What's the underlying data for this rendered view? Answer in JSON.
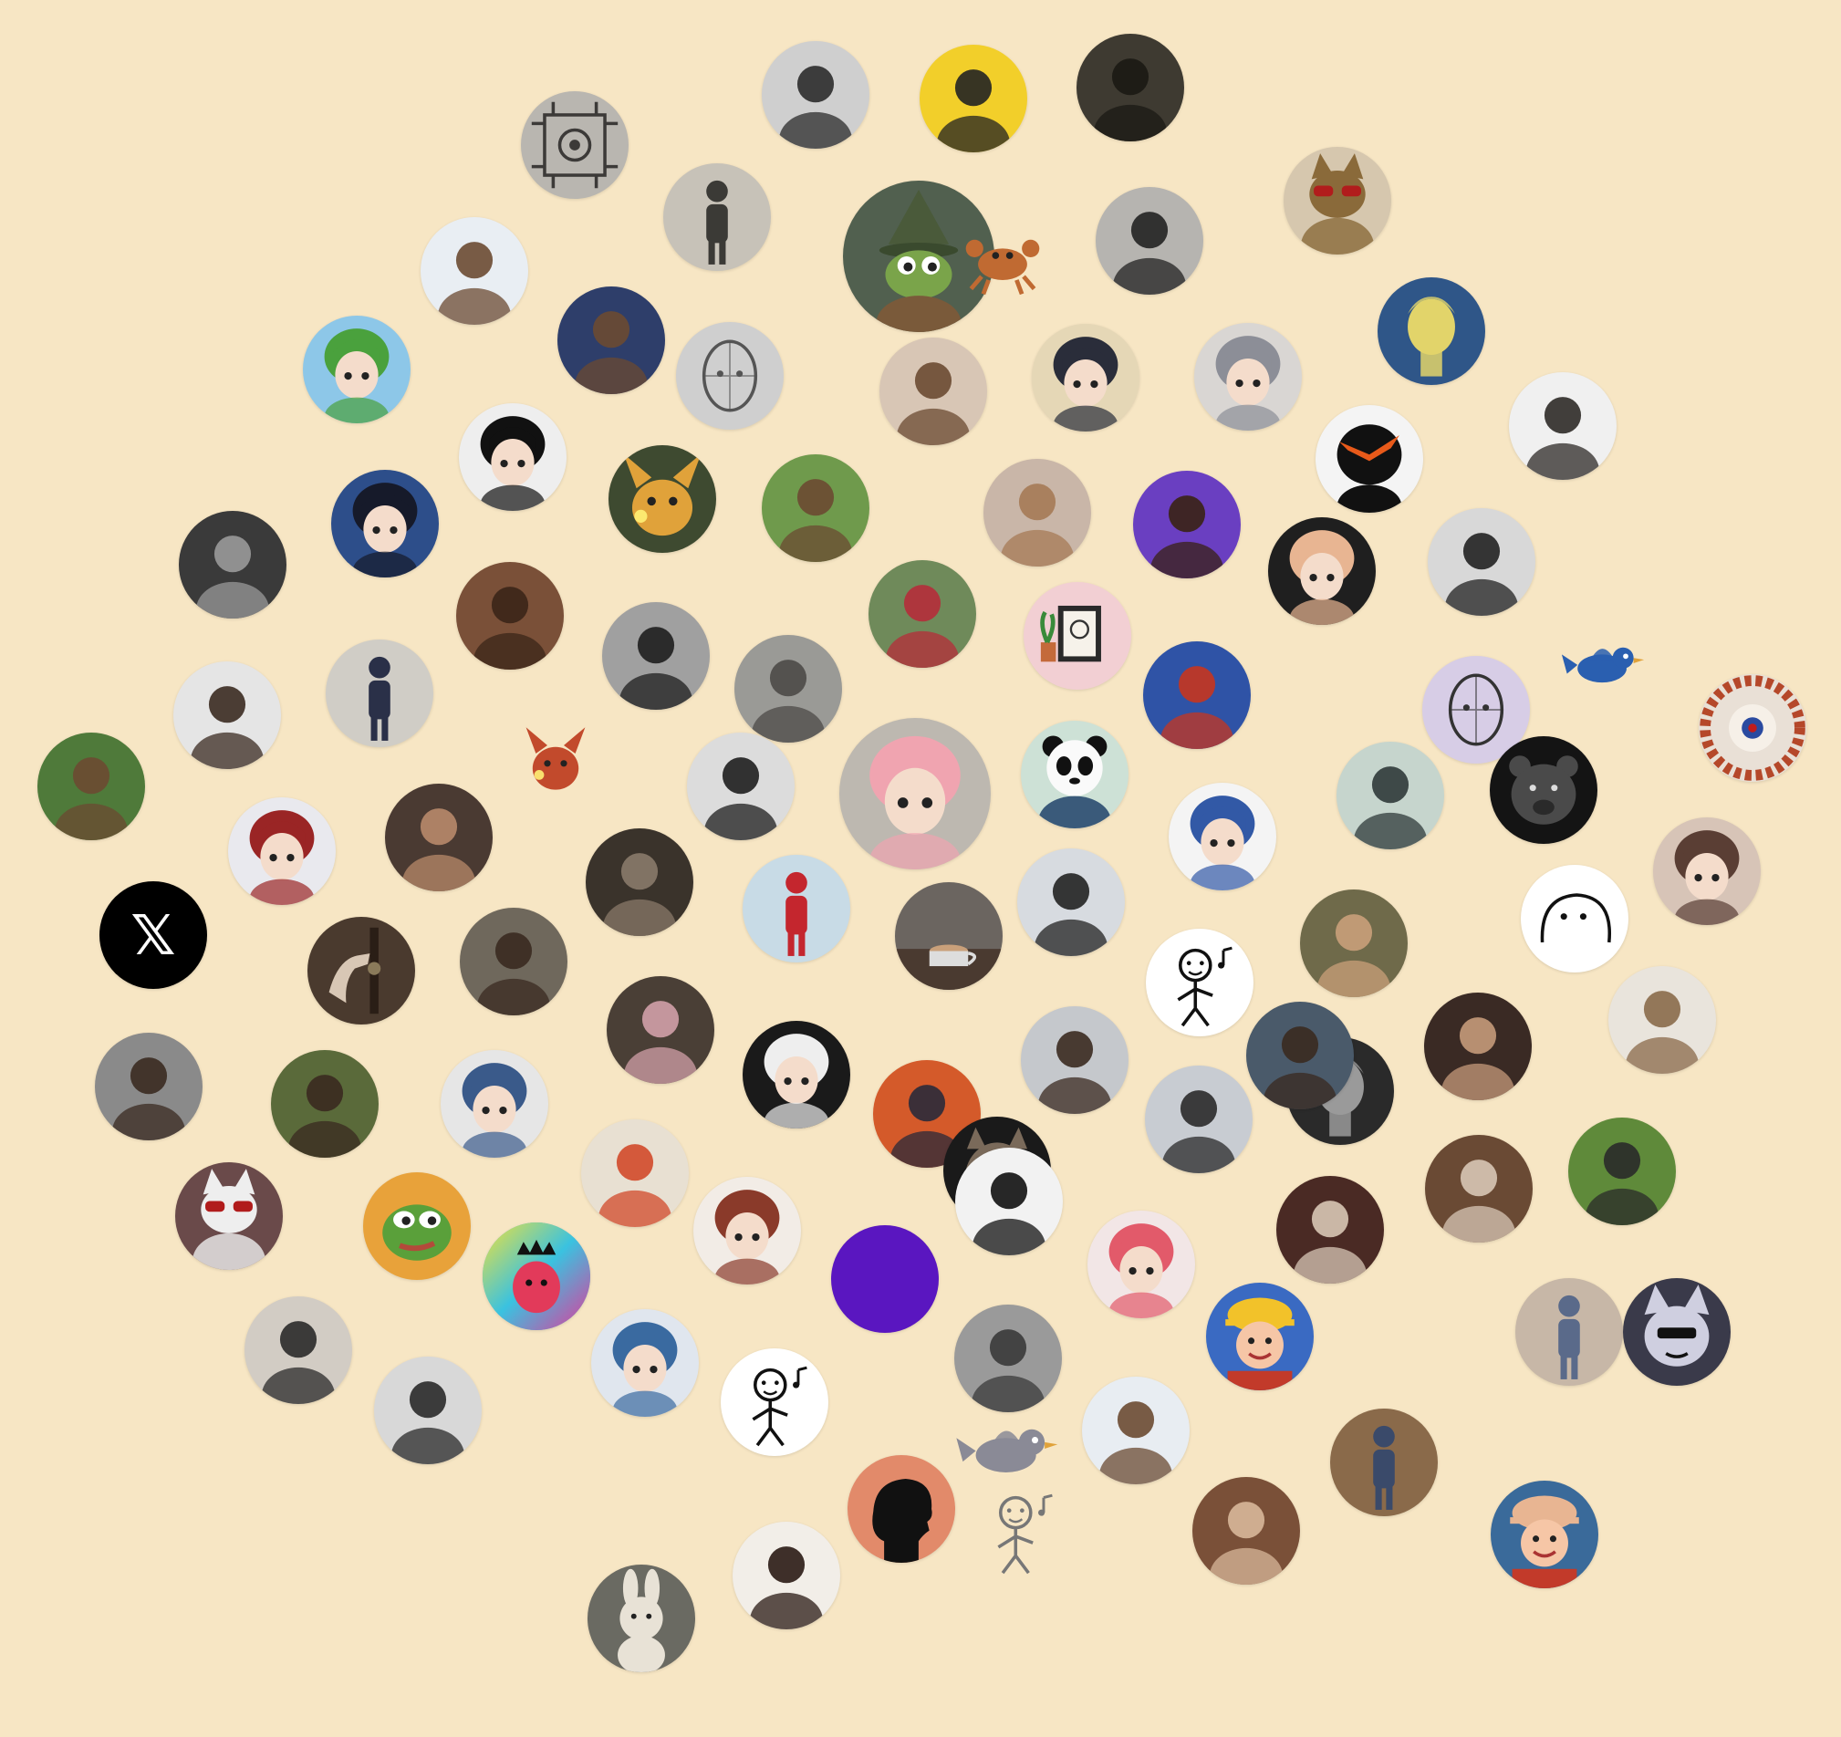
{
  "colors": {
    "background": "#f7e6c4"
  },
  "x_logo_glyph": "𝕏",
  "avatars": [
    {
      "name": "circuit-art-avatar",
      "icon": "circuit-board",
      "shape": "circle",
      "bg": "#b9b6b0",
      "fg": "#3c3a38"
    },
    {
      "name": "person-bw-avatar",
      "icon": "person-face",
      "shape": "circle",
      "bg": "#cfcfcf",
      "fg": "#2b2b2b"
    },
    {
      "name": "person-yellow-avatar",
      "icon": "person-face",
      "shape": "circle",
      "bg": "#f2cf2a",
      "fg": "#222222"
    },
    {
      "name": "person-dark-room-avatar",
      "icon": "person-face",
      "shape": "circle",
      "bg": "#3e3a31",
      "fg": "#1b1914"
    },
    {
      "name": "person-beach-avatar",
      "icon": "person-standing",
      "shape": "circle",
      "bg": "#c7c2b8",
      "fg": "#3b3a36"
    },
    {
      "name": "pepe-wizard-avatar",
      "icon": "frog-wizard",
      "shape": "circle",
      "bg": "#51604f",
      "fg": "#7aa44a"
    },
    {
      "name": "crab-sticker-avatar",
      "icon": "crab",
      "shape": "free",
      "bg": "transparent",
      "fg": "#c06a32"
    },
    {
      "name": "person-mirror-selfie-avatar",
      "icon": "person-face",
      "shape": "circle",
      "bg": "#b6b4b0",
      "fg": "#222222"
    },
    {
      "name": "cat-sunglasses-avatar",
      "icon": "cat",
      "shape": "circle",
      "bg": "#d6c7ae",
      "fg": "#8a6a3a"
    },
    {
      "name": "person-smiling-blue-avatar",
      "icon": "person-face",
      "shape": "circle",
      "bg": "#e9eef3",
      "fg": "#6b4a32"
    },
    {
      "name": "person-suit-avatar",
      "icon": "person-face",
      "shape": "circle",
      "bg": "#2e3e6a",
      "fg": "#6b4a32"
    },
    {
      "name": "pencil-sketch-head-avatar",
      "icon": "sketch-head",
      "shape": "circle",
      "bg": "#cfcfcf",
      "fg": "#555555"
    },
    {
      "name": "person-cafe-avatar",
      "icon": "person-face",
      "shape": "circle",
      "bg": "#d8c6b5",
      "fg": "#6b4a32"
    },
    {
      "name": "anime-dark-hair-avatar",
      "icon": "anime-face",
      "shape": "circle",
      "bg": "#e5d7b6",
      "fg": "#2a2d3a"
    },
    {
      "name": "anime-bearded-man-avatar",
      "icon": "anime-face",
      "shape": "circle",
      "bg": "#d9d6d3",
      "fg": "#8c8e97"
    },
    {
      "name": "david-statue-avatar",
      "icon": "statue-head",
      "shape": "circle",
      "bg": "#2f5688",
      "fg": "#e2d46a"
    },
    {
      "name": "anime-green-hair-avatar",
      "icon": "anime-face",
      "shape": "circle",
      "bg": "#8dc7e8",
      "fg": "#4aa13d"
    },
    {
      "name": "manga-girl-avatar",
      "icon": "anime-face",
      "shape": "circle",
      "bg": "#eeeeee",
      "fg": "#111111"
    },
    {
      "name": "raichu-avatar",
      "icon": "pokemon",
      "shape": "circle",
      "bg": "#3e4a30",
      "fg": "#e0a23a"
    },
    {
      "name": "person-green-hills-avatar",
      "icon": "person-face",
      "shape": "circle",
      "bg": "#6f9a4c",
      "fg": "#6b4a32"
    },
    {
      "name": "person-guitar-avatar",
      "icon": "person-face",
      "shape": "circle",
      "bg": "#f0f0f0",
      "fg": "#2e2a27"
    },
    {
      "name": "masked-figure-avatar",
      "icon": "mask-face",
      "shape": "circle",
      "bg": "#f4f4f4",
      "fg": "#111111"
    },
    {
      "name": "person-bw-phone-avatar",
      "icon": "person-face",
      "shape": "circle",
      "bg": "#3a3a3a",
      "fg": "#9a9a9a"
    },
    {
      "name": "anime-starry-night-avatar",
      "icon": "anime-face",
      "shape": "circle",
      "bg": "#2d4e8a",
      "fg": "#161a2a"
    },
    {
      "name": "barbie-avatar",
      "icon": "person-face",
      "shape": "circle",
      "bg": "#c9b6a8",
      "fg": "#a57a55"
    },
    {
      "name": "person-purple-avatar",
      "icon": "person-face",
      "shape": "circle",
      "bg": "#6a3fc1",
      "fg": "#3a2214"
    },
    {
      "name": "cartoon-woman-dark-avatar",
      "icon": "anime-face",
      "shape": "circle",
      "bg": "#1f1f1f",
      "fg": "#e8b592"
    },
    {
      "name": "person-long-hair-bw-avatar",
      "icon": "person-face",
      "shape": "circle",
      "bg": "#d8d8d8",
      "fg": "#222222"
    },
    {
      "name": "person-4wd-shirt-avatar",
      "icon": "person-face",
      "shape": "circle",
      "bg": "#7a5038",
      "fg": "#3b2518"
    },
    {
      "name": "woman-looking-up-bw-avatar",
      "icon": "person-face",
      "shape": "circle",
      "bg": "#a0a0a0",
      "fg": "#1e1e1e"
    },
    {
      "name": "person-waving-avatar",
      "icon": "person-face",
      "shape": "circle",
      "bg": "#9a9a96",
      "fg": "#4c4a47"
    },
    {
      "name": "woman-red-top-avatar",
      "icon": "person-face",
      "shape": "circle",
      "bg": "#6f8a5a",
      "fg": "#b52c3a"
    },
    {
      "name": "framed-drawing-avatar",
      "icon": "picture-frame",
      "shape": "circle",
      "bg": "#f2cfd3",
      "fg": "#555555"
    },
    {
      "name": "boy-us-flag-avatar",
      "icon": "person-face",
      "shape": "circle",
      "bg": "#2f53a6",
      "fg": "#c7351f"
    },
    {
      "name": "line-drawing-woman-avatar",
      "icon": "sketch-head",
      "shape": "circle",
      "bg": "#d7cde6",
      "fg": "#333333"
    },
    {
      "name": "bird-sticker-avatar",
      "icon": "bird",
      "shape": "free",
      "bg": "transparent",
      "fg": "#2a5fb0"
    },
    {
      "name": "person-smiling-avatar",
      "icon": "person-face",
      "shape": "circle",
      "bg": "#e5e5e5",
      "fg": "#3a2a20"
    },
    {
      "name": "woman-mirror-avatar",
      "icon": "person-standing",
      "shape": "circle",
      "bg": "#d0cdc6",
      "fg": "#2a3048"
    },
    {
      "name": "pokemon-red-sticker-avatar",
      "icon": "pokemon",
      "shape": "free",
      "bg": "transparent",
      "fg": "#c24a2c"
    },
    {
      "name": "person-red-cap-avatar",
      "icon": "person-face",
      "shape": "circle",
      "bg": "#dcdcdc",
      "fg": "#1e1e1e"
    },
    {
      "name": "anya-hat-avatar",
      "icon": "anime-face",
      "shape": "circle",
      "bg": "#bdb8b0",
      "fg": "#f0a4b0"
    },
    {
      "name": "panda-cafe-avatar",
      "icon": "panda",
      "shape": "circle",
      "bg": "#cde1d6",
      "fg": "#111111"
    },
    {
      "name": "superman-cartoon-avatar",
      "icon": "anime-face",
      "shape": "circle",
      "bg": "#f4f4f4",
      "fg": "#3259a6"
    },
    {
      "name": "vr-warrior-avatar",
      "icon": "person-face",
      "shape": "circle",
      "bg": "#c6d5cd",
      "fg": "#2f3a3a"
    },
    {
      "name": "black-bear-avatar",
      "icon": "bear",
      "shape": "circle",
      "bg": "#141414",
      "fg": "#4a4a4a"
    },
    {
      "name": "spiral-art-avatar",
      "icon": "spiral",
      "shape": "circle",
      "bg": "#e9e0d6",
      "fg": "#b5482a"
    },
    {
      "name": "person-field-avatar",
      "icon": "person-face",
      "shape": "circle",
      "bg": "#4f7a3a",
      "fg": "#6b4a32"
    },
    {
      "name": "anime-red-hair-avatar",
      "icon": "anime-face",
      "shape": "circle",
      "bg": "#e9e9ee",
      "fg": "#9a2525"
    },
    {
      "name": "woman-chin-hand-avatar",
      "icon": "person-face",
      "shape": "circle",
      "bg": "#4a3a32",
      "fg": "#b8896a"
    },
    {
      "name": "person-dim-restaurant-avatar",
      "icon": "person-face",
      "shape": "circle",
      "bg": "#3a332b",
      "fg": "#8a7a6a"
    },
    {
      "name": "faceless-red-suit-avatar",
      "icon": "person-standing",
      "shape": "circle",
      "bg": "#c8dbe6",
      "fg": "#c4262e"
    },
    {
      "name": "coffee-table-avatar",
      "icon": "coffee-cup",
      "shape": "circle",
      "bg": "#6b6560",
      "fg": "#c9a07a"
    },
    {
      "name": "person-vision-pro-crown-avatar",
      "icon": "person-face",
      "shape": "circle",
      "bg": "#d7dbe0",
      "fg": "#222222"
    },
    {
      "name": "doodle-computer-avatar",
      "icon": "doodle",
      "shape": "circle",
      "bg": "#ffffff",
      "fg": "#111111"
    },
    {
      "name": "fantasy-woman-portrait-avatar",
      "icon": "person-face",
      "shape": "circle",
      "bg": "#6f6a4a",
      "fg": "#c9a07a"
    },
    {
      "name": "white-blob-doodle-avatar",
      "icon": "blob",
      "shape": "circle",
      "bg": "#ffffff",
      "fg": "#111111"
    },
    {
      "name": "anime-brown-hair-avatar",
      "icon": "anime-face",
      "shape": "circle",
      "bg": "#d7c4b7",
      "fg": "#5a3e34"
    },
    {
      "name": "x-logo-avatar",
      "icon": "x-logo",
      "shape": "circle",
      "bg": "#000000",
      "fg": "#ffffff"
    },
    {
      "name": "hand-on-door-avatar",
      "icon": "hand",
      "shape": "circle",
      "bg": "#4a3a2e",
      "fg": "#d8c7b5"
    },
    {
      "name": "woman-portrait-avatar",
      "icon": "person-face",
      "shape": "circle",
      "bg": "#6f685c",
      "fg": "#3a2a20"
    },
    {
      "name": "woman-mirror-phone-avatar",
      "icon": "person-face",
      "shape": "circle",
      "bg": "#4a3f36",
      "fg": "#d2a0a8"
    },
    {
      "name": "manga-bw-girl-avatar",
      "icon": "anime-face",
      "shape": "circle",
      "bg": "#1a1a1a",
      "fg": "#eeeeee"
    },
    {
      "name": "person-neon-city-avatar",
      "icon": "person-face",
      "shape": "circle",
      "bg": "#d45a2a",
      "fg": "#2a2a3a"
    },
    {
      "name": "person-car-avatar",
      "icon": "person-face",
      "shape": "circle",
      "bg": "#c5c8cc",
      "fg": "#3a2a20"
    },
    {
      "name": "boy-portrait-avatar",
      "icon": "person-face",
      "shape": "circle",
      "bg": "#c8ccd2",
      "fg": "#2a2a2a"
    },
    {
      "name": "stone-face-avatar",
      "icon": "statue-head",
      "shape": "circle",
      "bg": "#2a2a2a",
      "fg": "#9a9a9a"
    },
    {
      "name": "man-dark-background-avatar",
      "icon": "person-face",
      "shape": "circle",
      "bg": "#3a2a24",
      "fg": "#c59a7a"
    },
    {
      "name": "bearded-king-avatar",
      "icon": "person-face",
      "shape": "circle",
      "bg": "#e9e4dc",
      "fg": "#8a6a4a"
    },
    {
      "name": "person-hand-gesture-avatar",
      "icon": "person-face",
      "shape": "circle",
      "bg": "#8a8a8a",
      "fg": "#3a2a20"
    },
    {
      "name": "boy-trees-avatar",
      "icon": "person-face",
      "shape": "circle",
      "bg": "#5a6a3a",
      "fg": "#3a2a20"
    },
    {
      "name": "anime-blue-hair-crown-avatar",
      "icon": "anime-face",
      "shape": "circle",
      "bg": "#e6e6e6",
      "fg": "#3a5a8a"
    },
    {
      "name": "person-turban-avatar",
      "icon": "person-face",
      "shape": "circle",
      "bg": "#e8e0d2",
      "fg": "#d14a2a"
    },
    {
      "name": "owl-sunglasses-avatar",
      "icon": "owl",
      "shape": "circle",
      "bg": "#1a1a1a",
      "fg": "#7a6a5a"
    },
    {
      "name": "person-sunglasses-avatar",
      "icon": "person-face",
      "shape": "circle",
      "bg": "#4a5a6a",
      "fg": "#3a2a20"
    },
    {
      "name": "man-restaurant-avatar",
      "icon": "person-face",
      "shape": "circle",
      "bg": "#6a4a34",
      "fg": "#d8c7b5"
    },
    {
      "name": "person-on-grass-avatar",
      "icon": "person-face",
      "shape": "circle",
      "bg": "#5f8a3a",
      "fg": "#2a2a2a"
    },
    {
      "name": "cat-blanket-avatar",
      "icon": "cat",
      "shape": "circle",
      "bg": "#6a4a4a",
      "fg": "#eeeeee"
    },
    {
      "name": "pepe-smug-avatar",
      "icon": "frog-face",
      "shape": "circle",
      "bg": "#e8a23a",
      "fg": "#5aa03a"
    },
    {
      "name": "anime-girl-flowers-avatar",
      "icon": "anime-face",
      "shape": "circle",
      "bg": "#f2ece6",
      "fg": "#8a3a2a"
    },
    {
      "name": "solid-purple-avatar",
      "icon": "blank",
      "shape": "circle",
      "bg": "#5a16c0",
      "fg": "#5a16c0"
    },
    {
      "name": "bald-vision-pro-avatar",
      "icon": "person-face",
      "shape": "circle",
      "bg": "#f2f2f2",
      "fg": "#111111"
    },
    {
      "name": "pink-hair-anime-book-avatar",
      "icon": "anime-face",
      "shape": "circle",
      "bg": "#f2e6e6",
      "fg": "#e25a6a"
    },
    {
      "name": "person-vr-headset-avatar",
      "icon": "person-face",
      "shape": "circle",
      "bg": "#4a2a24",
      "fg": "#d8c7b5"
    },
    {
      "name": "glitch-crown-avatar",
      "icon": "rainbow-blob",
      "shape": "circle",
      "bg": "#3ac2e0",
      "fg": "#e23a5a"
    },
    {
      "name": "anime-blue-hair-girl-avatar",
      "icon": "anime-face",
      "shape": "circle",
      "bg": "#e0e6ee",
      "fg": "#3a6aa0"
    },
    {
      "name": "doodle-music-avatar",
      "icon": "doodle",
      "shape": "circle",
      "bg": "#ffffff",
      "fg": "#111111"
    },
    {
      "name": "person-bw-portrait-avatar",
      "icon": "person-face",
      "shape": "circle",
      "bg": "#9a9a9a",
      "fg": "#3a3a3a"
    },
    {
      "name": "bob-the-builder-avatar",
      "icon": "cartoon-head",
      "shape": "circle",
      "bg": "#3a6ac2",
      "fg": "#f2c22a"
    },
    {
      "name": "woman-standing-avatar",
      "icon": "person-standing",
      "shape": "circle",
      "bg": "#c7b7a7",
      "fg": "#5a6a8a"
    },
    {
      "name": "wolf-cartoon-avatar",
      "icon": "wolf",
      "shape": "circle",
      "bg": "#3a3a4a",
      "fg": "#cfcfe0"
    },
    {
      "name": "man-glasses-avatar",
      "icon": "person-face",
      "shape": "circle",
      "bg": "#d2ccc4",
      "fg": "#2a2a2a"
    },
    {
      "name": "person-praying-avatar",
      "icon": "person-face",
      "shape": "circle",
      "bg": "#d8d8d8",
      "fg": "#2a2a2a"
    },
    {
      "name": "head-silhouette-avatar",
      "icon": "silhouette",
      "shape": "circle",
      "bg": "#e28a6a",
      "fg": "#111111"
    },
    {
      "name": "skarmory-sticker-avatar",
      "icon": "bird",
      "shape": "free",
      "bg": "transparent",
      "fg": "#8a8a96"
    },
    {
      "name": "young-sheldon-avatar",
      "icon": "person-face",
      "shape": "circle",
      "bg": "#e8edf2",
      "fg": "#6b4a32"
    },
    {
      "name": "man-sunglasses-avatar",
      "icon": "person-face",
      "shape": "circle",
      "bg": "#7a5038",
      "fg": "#d8b79a"
    },
    {
      "name": "person-sofa-avatar",
      "icon": "person-standing",
      "shape": "circle",
      "bg": "#8a6a4a",
      "fg": "#3a4a6a"
    },
    {
      "name": "chibi-figure-avatar",
      "icon": "cartoon-head",
      "shape": "circle",
      "bg": "#3a6a9a",
      "fg": "#e8b592"
    },
    {
      "name": "bunny-plush-avatar",
      "icon": "bunny",
      "shape": "circle",
      "bg": "#6a6a62",
      "fg": "#e8e2d6"
    },
    {
      "name": "woman-smiling-avatar",
      "icon": "person-face",
      "shape": "circle",
      "bg": "#f2eee8",
      "fg": "#2a1a14"
    },
    {
      "name": "edge-doodle-partial",
      "icon": "doodle",
      "shape": "free",
      "bg": "transparent",
      "fg": "#777777"
    }
  ]
}
